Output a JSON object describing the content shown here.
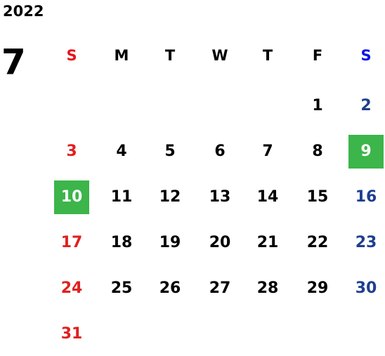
{
  "year": "2022",
  "month": "7",
  "weekdays": [
    "S",
    "M",
    "T",
    "W",
    "T",
    "F",
    "S"
  ],
  "weeks": [
    [
      null,
      null,
      null,
      null,
      null,
      1,
      2
    ],
    [
      3,
      4,
      5,
      6,
      7,
      8,
      9
    ],
    [
      10,
      11,
      12,
      13,
      14,
      15,
      16
    ],
    [
      17,
      18,
      19,
      20,
      21,
      22,
      23
    ],
    [
      24,
      25,
      26,
      27,
      28,
      29,
      30
    ],
    [
      31,
      null,
      null,
      null,
      null,
      null,
      null
    ]
  ],
  "highlighted": [
    9,
    10
  ]
}
